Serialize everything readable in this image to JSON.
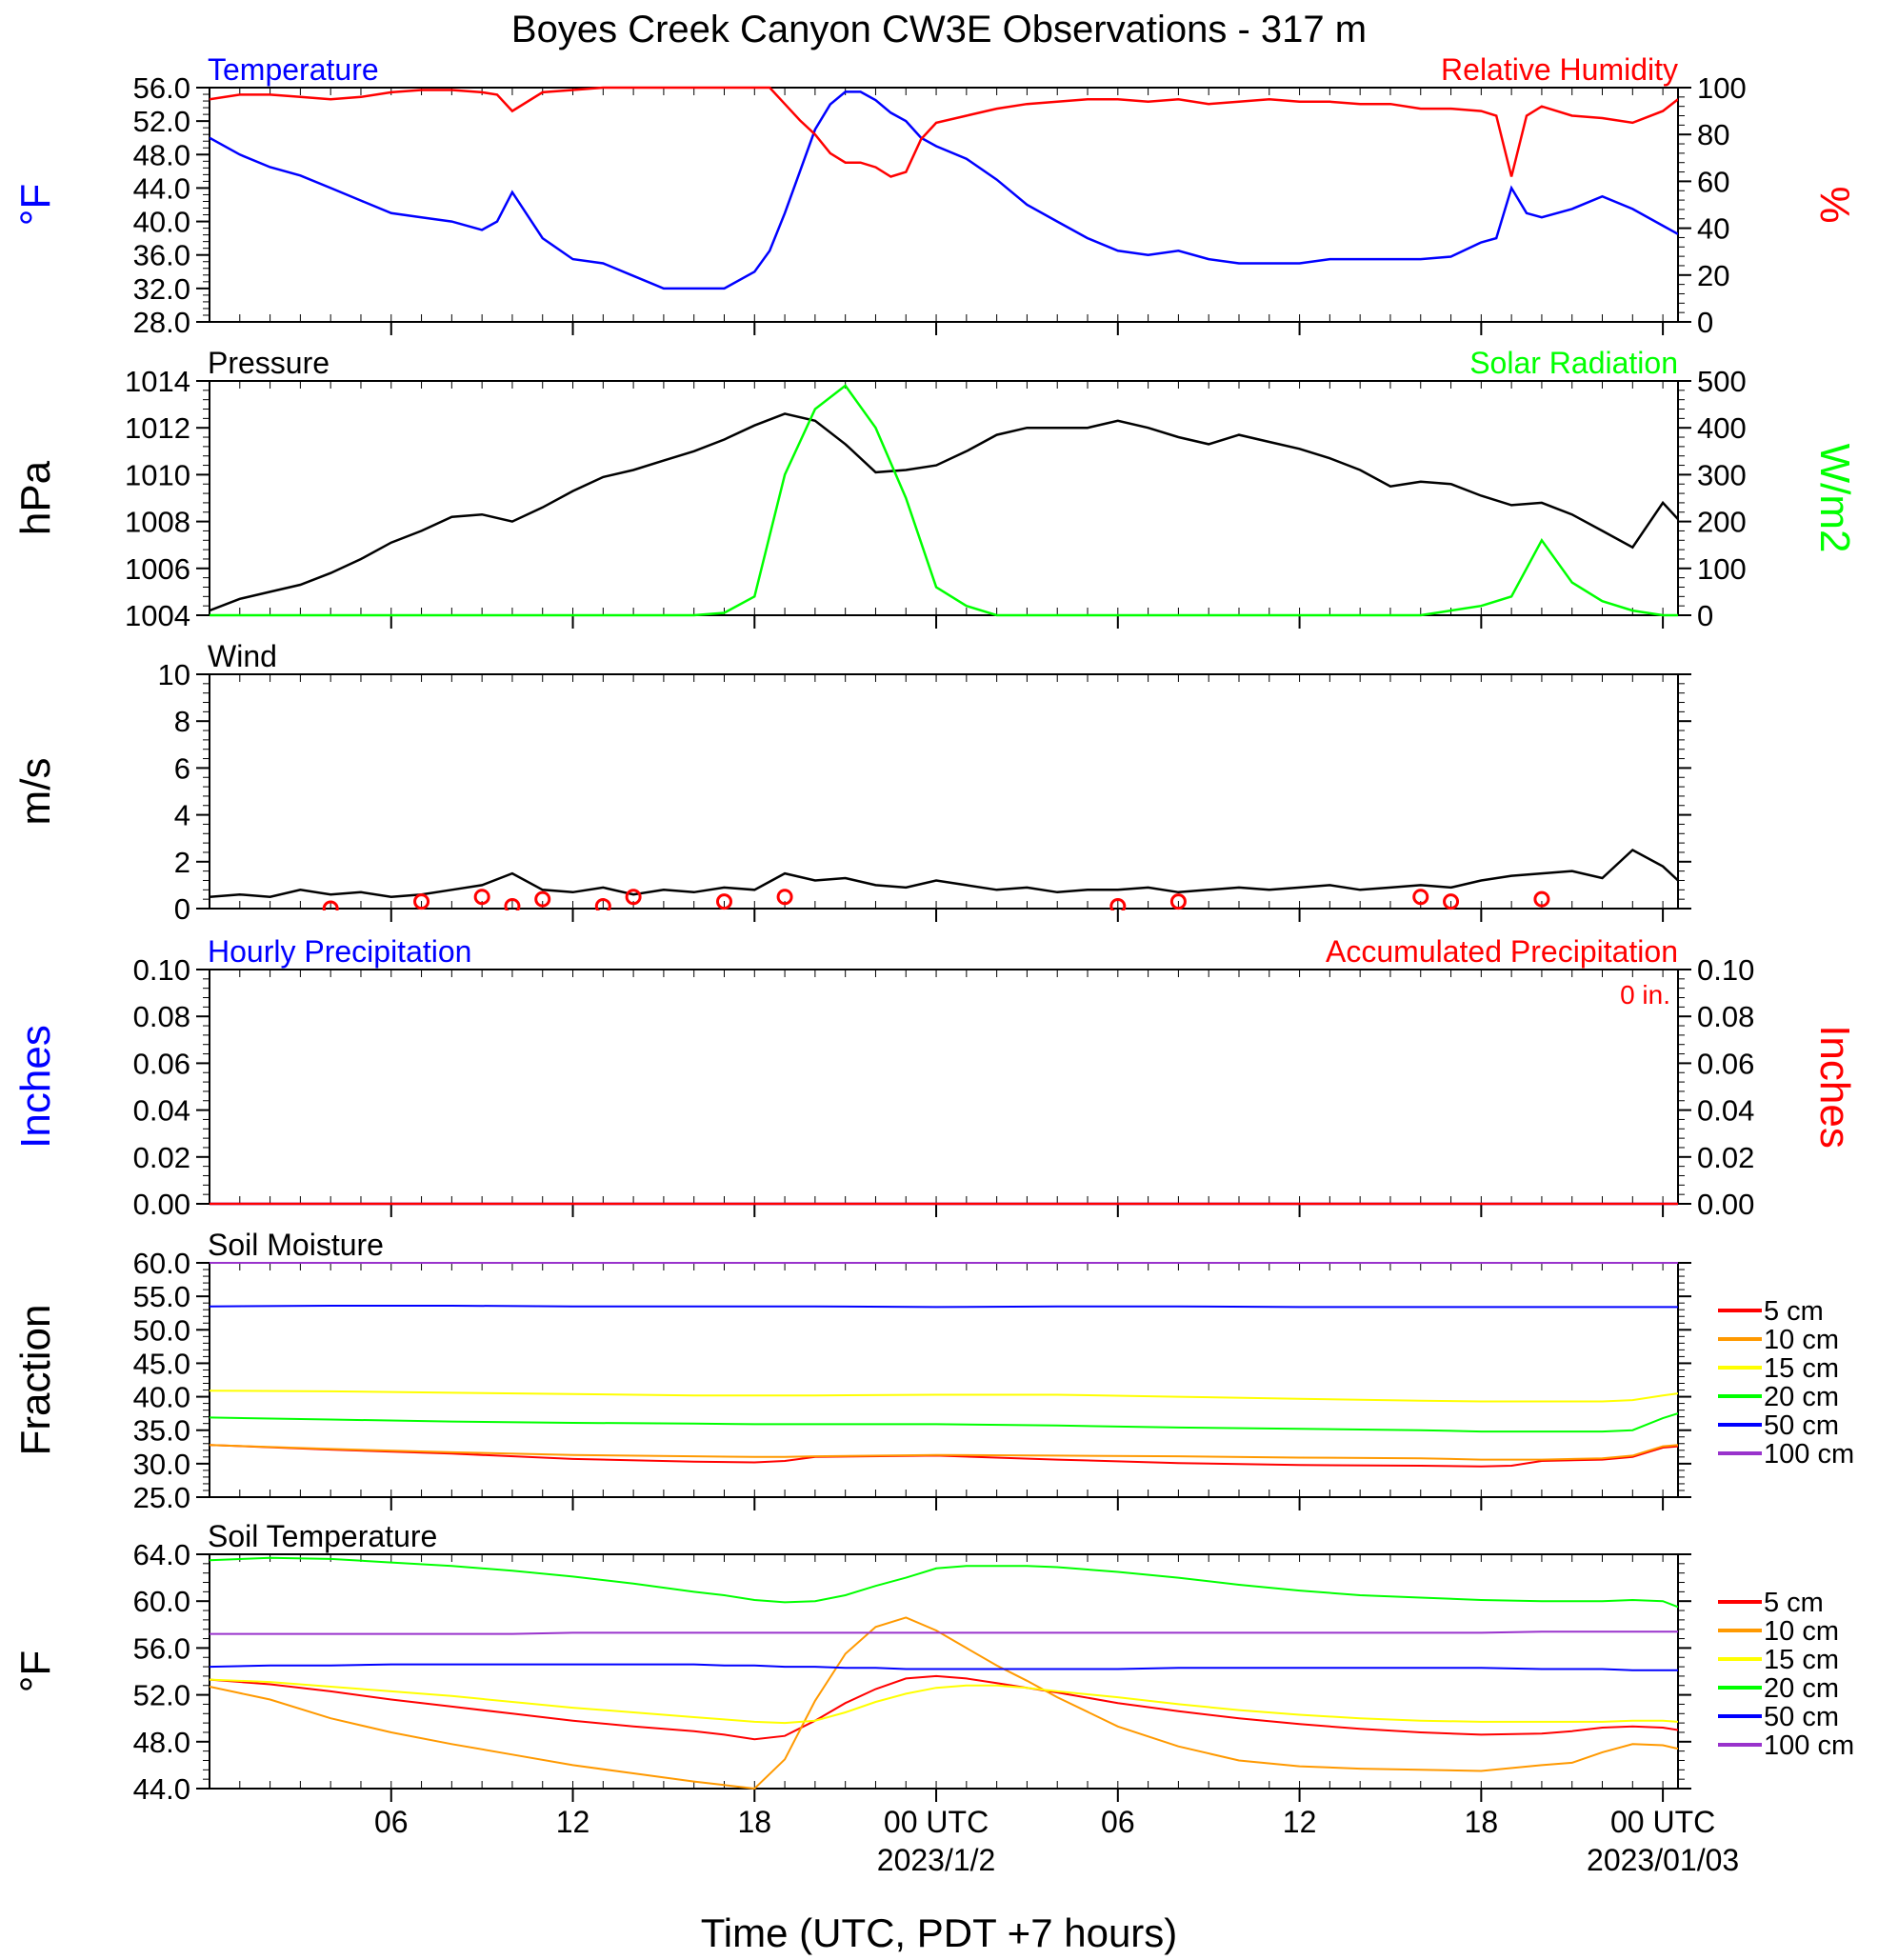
{
  "page": {
    "title": "Boyes Creek Canyon CW3E Observations - 317 m",
    "xlabel": "Time (UTC, PDT +7 hours)",
    "x_ticks": [
      {
        "hour": 6,
        "label": "06",
        "sub": ""
      },
      {
        "hour": 12,
        "label": "12",
        "sub": ""
      },
      {
        "hour": 18,
        "label": "18",
        "sub": ""
      },
      {
        "hour": 24,
        "label": "00 UTC",
        "sub": "2023/1/2"
      },
      {
        "hour": 30,
        "label": "06",
        "sub": ""
      },
      {
        "hour": 36,
        "label": "12",
        "sub": ""
      },
      {
        "hour": 42,
        "label": "18",
        "sub": ""
      },
      {
        "hour": 48,
        "label": "00 UTC",
        "sub": "2023/01/03"
      }
    ],
    "x_range_hours": [
      0,
      48.5
    ]
  },
  "chart_data": [
    {
      "type": "line",
      "panel": "temperature-rh",
      "title_left": "Temperature",
      "title_right": "Relative Humidity",
      "ylabel_left": "°F",
      "ylabel_right": "%",
      "ylim_left": [
        28,
        56
      ],
      "yticks_left": [
        "28.0",
        "32.0",
        "36.0",
        "40.0",
        "44.0",
        "48.0",
        "52.0",
        "56.0"
      ],
      "ylim_right": [
        0,
        100
      ],
      "yticks_right": [
        "0",
        "20",
        "40",
        "60",
        "80",
        "100"
      ],
      "x": [
        0,
        1,
        2,
        3,
        4,
        5,
        6,
        7,
        8,
        9,
        9.5,
        10,
        11,
        12,
        13,
        14,
        15,
        16,
        17,
        18,
        18.5,
        19,
        19.5,
        20,
        20.5,
        21,
        21.5,
        22,
        22.5,
        23,
        23.5,
        24,
        25,
        26,
        27,
        28,
        29,
        30,
        31,
        32,
        33,
        34,
        35,
        36,
        37,
        38,
        39,
        40,
        41,
        42,
        42.5,
        43,
        43.5,
        44,
        45,
        46,
        47,
        48,
        48.5
      ],
      "series": [
        {
          "name": "Temperature",
          "axis": "left",
          "color": "#0000ff",
          "values": [
            50,
            48,
            46.5,
            45.5,
            44,
            42.5,
            41,
            40.5,
            40,
            39,
            40,
            43.5,
            38,
            35.5,
            35,
            33.5,
            32,
            32,
            32,
            34,
            36.5,
            41,
            46,
            51,
            54,
            55.5,
            55.5,
            54.5,
            53,
            52,
            50,
            49,
            47.5,
            45,
            42,
            40,
            38,
            36.5,
            36,
            36.5,
            35.5,
            35,
            35,
            35,
            35.5,
            35.5,
            35.5,
            35.5,
            35.8,
            37.5,
            38,
            44,
            41,
            40.5,
            41.5,
            43,
            41.5,
            39.5,
            38.5
          ]
        },
        {
          "name": "Relative Humidity",
          "axis": "right",
          "color": "#ff0000",
          "values": [
            95,
            97,
            97,
            96,
            95,
            96,
            98,
            99,
            99,
            98,
            97,
            90,
            98,
            99,
            100,
            100,
            100,
            100,
            100,
            100,
            100,
            93,
            86,
            80,
            72,
            68,
            68,
            66,
            62,
            64,
            78,
            85,
            88,
            91,
            93,
            94,
            95,
            95,
            94,
            95,
            93,
            94,
            95,
            94,
            94,
            93,
            93,
            91,
            91,
            90,
            88,
            62,
            88,
            92,
            88,
            87,
            85,
            90,
            95
          ]
        }
      ]
    },
    {
      "type": "line",
      "panel": "pressure-solar",
      "title_left": "Pressure",
      "title_right": "Solar Radiation",
      "ylabel_left": "hPa",
      "ylabel_right": "W/m2",
      "ylim_left": [
        1004,
        1014
      ],
      "yticks_left": [
        "1004",
        "1006",
        "1008",
        "1010",
        "1012",
        "1014"
      ],
      "ylim_right": [
        0,
        500
      ],
      "yticks_right": [
        "0",
        "100",
        "200",
        "300",
        "400",
        "500"
      ],
      "x": [
        0,
        1,
        2,
        3,
        4,
        5,
        6,
        7,
        8,
        9,
        10,
        11,
        12,
        13,
        14,
        15,
        16,
        17,
        18,
        19,
        20,
        21,
        22,
        23,
        24,
        25,
        26,
        27,
        28,
        29,
        30,
        31,
        32,
        33,
        34,
        35,
        36,
        37,
        38,
        39,
        40,
        41,
        42,
        43,
        44,
        45,
        46,
        47,
        48,
        48.5
      ],
      "series": [
        {
          "name": "Pressure",
          "axis": "left",
          "color": "#000000",
          "values": [
            1004.2,
            1004.7,
            1005,
            1005.3,
            1005.8,
            1006.4,
            1007.1,
            1007.6,
            1008.2,
            1008.3,
            1008,
            1008.6,
            1009.3,
            1009.9,
            1010.2,
            1010.6,
            1011,
            1011.5,
            1012.1,
            1012.6,
            1012.3,
            1011.3,
            1010.1,
            1010.2,
            1010.4,
            1011,
            1011.7,
            1012,
            1012,
            1012,
            1012.3,
            1012,
            1011.6,
            1011.3,
            1011.7,
            1011.4,
            1011.1,
            1010.7,
            1010.2,
            1009.5,
            1009.7,
            1009.6,
            1009.1,
            1008.7,
            1008.8,
            1008.3,
            1007.6,
            1006.9,
            1008.8,
            1008.1
          ]
        },
        {
          "name": "Solar Radiation",
          "axis": "right",
          "color": "#00ff00",
          "values": [
            0,
            0,
            0,
            0,
            0,
            0,
            0,
            0,
            0,
            0,
            0,
            0,
            0,
            0,
            0,
            0,
            0,
            5,
            40,
            300,
            440,
            490,
            400,
            250,
            60,
            20,
            0,
            0,
            0,
            0,
            0,
            0,
            0,
            0,
            0,
            0,
            0,
            0,
            0,
            0,
            0,
            10,
            20,
            40,
            160,
            70,
            30,
            10,
            0,
            0
          ]
        }
      ]
    },
    {
      "type": "line",
      "panel": "wind",
      "title_left": "Wind",
      "ylabel_left": "m/s",
      "ylim_left": [
        0,
        10
      ],
      "yticks_left": [
        "0",
        "2",
        "4",
        "6",
        "8",
        "10"
      ],
      "x": [
        0,
        1,
        2,
        3,
        4,
        5,
        6,
        7,
        8,
        9,
        10,
        11,
        12,
        13,
        14,
        15,
        16,
        17,
        18,
        19,
        20,
        21,
        22,
        23,
        24,
        25,
        26,
        27,
        28,
        29,
        30,
        31,
        32,
        33,
        34,
        35,
        36,
        37,
        38,
        39,
        40,
        41,
        42,
        43,
        44,
        45,
        46,
        47,
        48,
        48.5
      ],
      "series": [
        {
          "name": "Wind speed",
          "axis": "left",
          "color": "#000000",
          "values": [
            0.5,
            0.6,
            0.5,
            0.8,
            0.6,
            0.7,
            0.5,
            0.6,
            0.8,
            1,
            1.5,
            0.8,
            0.7,
            0.9,
            0.6,
            0.8,
            0.7,
            0.9,
            0.8,
            1.5,
            1.2,
            1.3,
            1,
            0.9,
            1.2,
            1,
            0.8,
            0.9,
            0.7,
            0.8,
            0.8,
            0.9,
            0.7,
            0.8,
            0.9,
            0.8,
            0.9,
            1,
            0.8,
            0.9,
            1,
            0.9,
            1.2,
            1.4,
            1.5,
            1.6,
            1.3,
            2.5,
            1.8,
            1.2
          ]
        },
        {
          "name": "Calm",
          "axis": "left",
          "color": "#ff0000",
          "style": "circles",
          "x": [
            4,
            7,
            9,
            10,
            11,
            13,
            14,
            17,
            19,
            30,
            32,
            40,
            41,
            44
          ],
          "values": [
            0,
            0.3,
            0.5,
            0.1,
            0.4,
            0.1,
            0.5,
            0.3,
            0.5,
            0.1,
            0.3,
            0.5,
            0.3,
            0.4
          ]
        }
      ]
    },
    {
      "type": "line",
      "panel": "precipitation",
      "title_left": "Hourly Precipitation",
      "title_right": "Accumulated Precipitation",
      "annotation": "0 in.",
      "ylabel_left": "Inches",
      "ylabel_right": "Inches",
      "ylim_left": [
        0,
        0.1
      ],
      "yticks_left": [
        "0.00",
        "0.02",
        "0.04",
        "0.06",
        "0.08",
        "0.10"
      ],
      "ylim_right": [
        0,
        0.1
      ],
      "yticks_right": [
        "0.00",
        "0.02",
        "0.04",
        "0.06",
        "0.08",
        "0.10"
      ],
      "x": [
        0,
        48.5
      ],
      "series": [
        {
          "name": "Hourly Precipitation",
          "axis": "left",
          "color": "#0000ff",
          "values": [
            0,
            0
          ]
        },
        {
          "name": "Accumulated Precipitation",
          "axis": "right",
          "color": "#ff0000",
          "values": [
            0,
            0
          ]
        }
      ]
    },
    {
      "type": "line",
      "panel": "soil-moisture",
      "title_left": "Soil Moisture",
      "ylabel_left": "Fraction",
      "ylim_left": [
        25,
        60
      ],
      "yticks_left": [
        "25.0",
        "30.0",
        "35.0",
        "40.0",
        "45.0",
        "50.0",
        "55.0",
        "60.0"
      ],
      "legend": "right",
      "x": [
        0,
        4,
        8,
        12,
        16,
        18,
        19,
        20,
        24,
        28,
        32,
        36,
        40,
        42,
        43,
        44,
        46,
        47,
        48,
        48.5
      ],
      "series": [
        {
          "name": "5 cm",
          "color": "#ff0000",
          "values": [
            32.8,
            32.1,
            31.5,
            30.7,
            30.3,
            30.2,
            30.4,
            31,
            31.2,
            30.6,
            30.1,
            29.8,
            29.7,
            29.6,
            29.7,
            30.4,
            30.6,
            31,
            32.4,
            32.6
          ]
        },
        {
          "name": "10 cm",
          "color": "#ff9900",
          "values": [
            32.8,
            32.2,
            31.7,
            31.3,
            31.1,
            31,
            31,
            31.1,
            31.3,
            31.2,
            31.1,
            30.9,
            30.8,
            30.6,
            30.6,
            30.6,
            30.8,
            31.2,
            32.6,
            32.8
          ]
        },
        {
          "name": "15 cm",
          "color": "#ffff00",
          "values": [
            40.9,
            40.8,
            40.6,
            40.4,
            40.2,
            40.2,
            40.2,
            40.2,
            40.3,
            40.3,
            40,
            39.7,
            39.4,
            39.3,
            39.3,
            39.3,
            39.3,
            39.5,
            40.2,
            40.5
          ]
        },
        {
          "name": "20 cm",
          "color": "#00ff00",
          "values": [
            36.9,
            36.6,
            36.3,
            36.1,
            36,
            35.9,
            35.9,
            35.9,
            35.9,
            35.7,
            35.4,
            35.2,
            35,
            34.8,
            34.8,
            34.8,
            34.8,
            35,
            36.8,
            37.5
          ]
        },
        {
          "name": "50 cm",
          "color": "#0000ff",
          "values": [
            53.5,
            53.6,
            53.6,
            53.5,
            53.5,
            53.5,
            53.5,
            53.5,
            53.4,
            53.5,
            53.5,
            53.4,
            53.4,
            53.4,
            53.4,
            53.4,
            53.4,
            53.4,
            53.4,
            53.4
          ]
        },
        {
          "name": "100 cm",
          "color": "#9933cc",
          "values": [
            60,
            60,
            60,
            60,
            60,
            60,
            60,
            60,
            60,
            60,
            60,
            60,
            60,
            60,
            60,
            60,
            60,
            60,
            60,
            60
          ]
        }
      ]
    },
    {
      "type": "line",
      "panel": "soil-temperature",
      "title_left": "Soil Temperature",
      "ylabel_left": "°F",
      "ylim_left": [
        44,
        64
      ],
      "yticks_left": [
        "44.0",
        "48.0",
        "52.0",
        "56.0",
        "60.0",
        "64.0"
      ],
      "legend": "right",
      "x": [
        0,
        2,
        4,
        6,
        8,
        10,
        12,
        14,
        16,
        17,
        18,
        19,
        20,
        21,
        22,
        23,
        24,
        25,
        26,
        27,
        28,
        30,
        32,
        34,
        36,
        38,
        40,
        42,
        44,
        45,
        46,
        47,
        48,
        48.5
      ],
      "series": [
        {
          "name": "5 cm",
          "color": "#ff0000",
          "values": [
            53.3,
            52.9,
            52.3,
            51.6,
            51,
            50.4,
            49.8,
            49.3,
            48.9,
            48.6,
            48.2,
            48.5,
            49.8,
            51.3,
            52.5,
            53.4,
            53.6,
            53.4,
            53,
            52.6,
            52.2,
            51.3,
            50.6,
            50,
            49.5,
            49.1,
            48.8,
            48.6,
            48.7,
            48.9,
            49.2,
            49.3,
            49.2,
            49
          ]
        },
        {
          "name": "10 cm",
          "color": "#ff9900",
          "values": [
            52.7,
            51.6,
            50,
            48.8,
            47.8,
            46.9,
            46,
            45.3,
            44.6,
            44.3,
            44,
            46.5,
            51.5,
            55.5,
            57.8,
            58.6,
            57.5,
            56,
            54.5,
            53.2,
            51.8,
            49.3,
            47.6,
            46.4,
            45.9,
            45.7,
            45.6,
            45.5,
            46,
            46.2,
            47.1,
            47.8,
            47.7,
            47.4
          ]
        },
        {
          "name": "15 cm",
          "color": "#ffff00",
          "values": [
            53.3,
            53.1,
            52.7,
            52.3,
            51.9,
            51.4,
            50.9,
            50.5,
            50.1,
            49.9,
            49.7,
            49.6,
            49.8,
            50.5,
            51.4,
            52.1,
            52.6,
            52.8,
            52.8,
            52.6,
            52.3,
            51.8,
            51.2,
            50.7,
            50.3,
            50,
            49.8,
            49.7,
            49.7,
            49.7,
            49.7,
            49.8,
            49.8,
            49.7
          ]
        },
        {
          "name": "20 cm",
          "color": "#00ff00",
          "values": [
            63.5,
            63.7,
            63.6,
            63.3,
            63,
            62.6,
            62.1,
            61.5,
            60.8,
            60.5,
            60.1,
            59.9,
            60,
            60.5,
            61.3,
            62,
            62.8,
            63,
            63,
            63,
            62.9,
            62.5,
            62,
            61.4,
            60.9,
            60.5,
            60.3,
            60.1,
            60,
            60,
            60,
            60.1,
            60,
            59.5
          ]
        },
        {
          "name": "50 cm",
          "color": "#0000ff",
          "values": [
            54.4,
            54.5,
            54.5,
            54.6,
            54.6,
            54.6,
            54.6,
            54.6,
            54.6,
            54.5,
            54.5,
            54.4,
            54.4,
            54.3,
            54.3,
            54.2,
            54.2,
            54.2,
            54.2,
            54.2,
            54.2,
            54.2,
            54.3,
            54.3,
            54.3,
            54.3,
            54.3,
            54.3,
            54.2,
            54.2,
            54.2,
            54.1,
            54.1,
            54.1
          ]
        },
        {
          "name": "100 cm",
          "color": "#9933cc",
          "values": [
            57.2,
            57.2,
            57.2,
            57.2,
            57.2,
            57.2,
            57.3,
            57.3,
            57.3,
            57.3,
            57.3,
            57.3,
            57.3,
            57.3,
            57.3,
            57.3,
            57.3,
            57.3,
            57.3,
            57.3,
            57.3,
            57.3,
            57.3,
            57.3,
            57.3,
            57.3,
            57.3,
            57.3,
            57.4,
            57.4,
            57.4,
            57.4,
            57.4,
            57.4
          ]
        }
      ]
    }
  ]
}
